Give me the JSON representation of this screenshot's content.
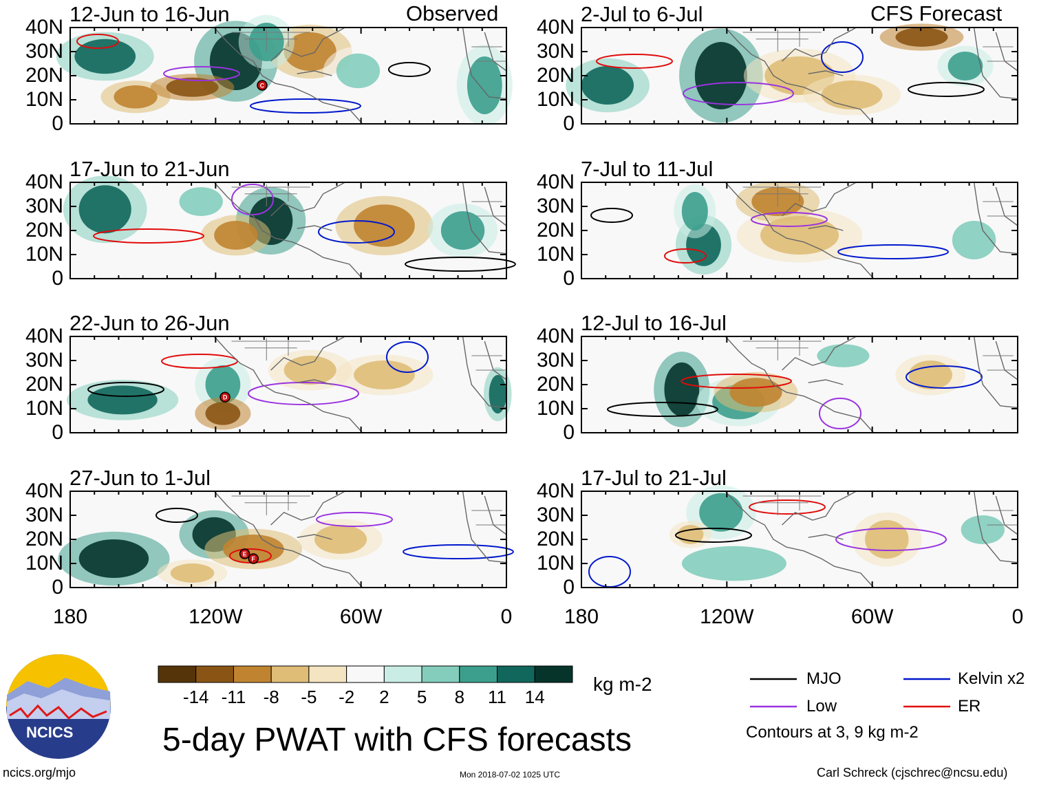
{
  "headers": {
    "left": "Observed",
    "right": "CFS Forecast"
  },
  "panels": [
    {
      "date": "12-Jun to 16-Jun",
      "storms": [
        "C"
      ]
    },
    {
      "date": "2-Jul to 6-Jul",
      "storms": []
    },
    {
      "date": "17-Jun to 21-Jun",
      "storms": []
    },
    {
      "date": "7-Jul to 11-Jul",
      "storms": []
    },
    {
      "date": "22-Jun to 26-Jun",
      "storms": [
        "D"
      ]
    },
    {
      "date": "12-Jul to 16-Jul",
      "storms": []
    },
    {
      "date": "27-Jun to 1-Jul",
      "storms": [
        "E",
        "F"
      ]
    },
    {
      "date": "17-Jul to 21-Jul",
      "storms": []
    }
  ],
  "lat_labels": [
    "40N",
    "30N",
    "20N",
    "10N",
    "0"
  ],
  "lon_labels": [
    "180",
    "120W",
    "60W",
    "0"
  ],
  "colorbar": {
    "labels": [
      "-14",
      "-11",
      "-8",
      "-5",
      "-2",
      "2",
      "5",
      "8",
      "11",
      "14"
    ],
    "colors": [
      "#553409",
      "#8a5514",
      "#c08431",
      "#dfbd77",
      "#f4e4c1",
      "#f8f8f8",
      "#c9ede4",
      "#84cdbc",
      "#3c9f8d",
      "#11675c",
      "#06342b"
    ],
    "units": "kg m-2"
  },
  "legend": {
    "items": [
      {
        "label": "MJO",
        "color": "#000000"
      },
      {
        "label": "Kelvin x2",
        "color": "#0018cc"
      },
      {
        "label": "Low",
        "color": "#9a33e0"
      },
      {
        "label": "ER",
        "color": "#e10b0b"
      }
    ],
    "note": "Contours at 3, 9 kg m-2"
  },
  "title": "5-day PWAT with CFS forecasts",
  "logo": {
    "text": "NCICS"
  },
  "footer": {
    "left": "ncics.org/mjo",
    "center": "Mon 2018-07-02 1025 UTC",
    "right": "Carl Schreck (cjschrec@ncsu.edu)"
  }
}
